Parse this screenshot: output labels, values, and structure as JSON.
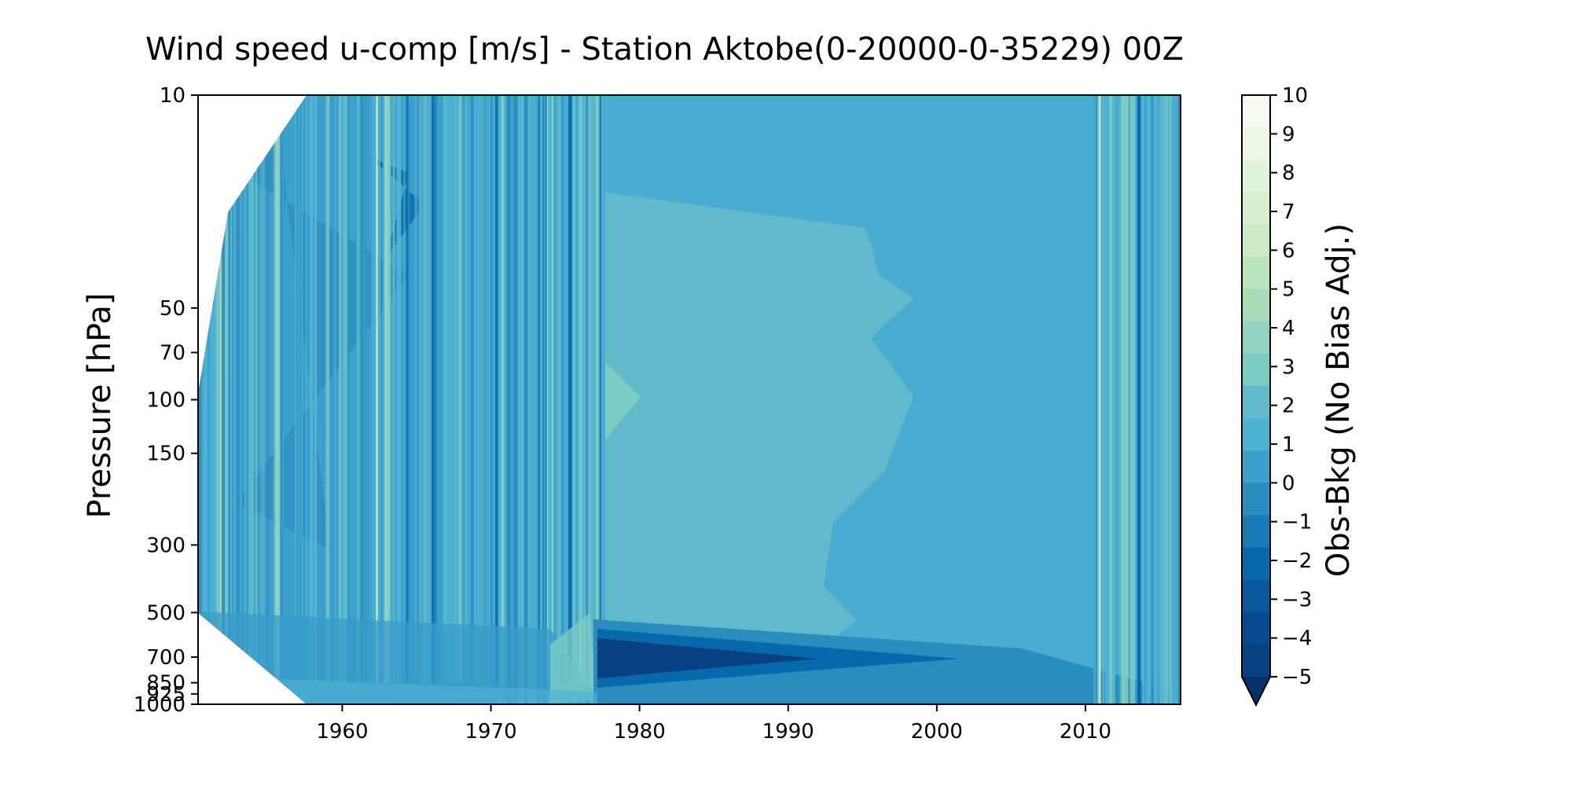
{
  "chart_data": {
    "type": "heatmap",
    "title": "Wind speed u-comp [m/s] - Station Aktobe(0-20000-0-35229) 00Z",
    "ylabel": "Pressure [hPa]",
    "xlabel": "",
    "x_ticks": [
      1960,
      1970,
      1980,
      1990,
      2000,
      2010
    ],
    "xlim": [
      1950.3,
      2016.4
    ],
    "y_ticks": [
      10,
      50,
      70,
      100,
      150,
      300,
      500,
      700,
      850,
      925,
      1000
    ],
    "y_ticklabels": [
      "10",
      "50",
      "70",
      "100",
      "150",
      "300",
      "500",
      "700",
      "850",
      "925",
      "1000"
    ],
    "ylim": [
      1000,
      10
    ],
    "colorbar": {
      "label": "Obs-Bkg (No Bias Adj.)",
      "ticks": [
        10,
        9,
        8,
        7,
        6,
        5,
        4,
        3,
        2,
        1,
        0,
        -1,
        -2,
        -3,
        -4,
        -5
      ],
      "tick_labels": [
        "10",
        "9",
        "8",
        "7",
        "6",
        "5",
        "4",
        "3",
        "2",
        "1",
        "0",
        "−1",
        "−2",
        "−3",
        "−4",
        "−5"
      ],
      "range": [
        -5,
        10
      ],
      "extend": "min",
      "colormap": "GnBu_r",
      "colors": [
        "#084081",
        "#0868ac",
        "#2b8cbe",
        "#4eb3d3",
        "#7bccc4",
        "#a8ddb5",
        "#ccebc5",
        "#e0f3db",
        "#f7fcf0"
      ]
    },
    "dominant_value": 0.5,
    "regions": [
      {
        "x": [
          1950.3,
          1977.5
        ],
        "p": [
          10,
          1000
        ],
        "value": -0.5,
        "pattern": "highly variable vertical streaks (-3 to 5)"
      },
      {
        "x": [
          1977.5,
          2010.5
        ],
        "p": [
          150,
          850
        ],
        "value": 1.5
      },
      {
        "x": [
          1977.5,
          2008.5
        ],
        "p": [
          880,
          960
        ],
        "value": -4.5
      },
      {
        "x": [
          2010.5,
          2016.4
        ],
        "p": [
          10,
          1000
        ],
        "value": 0.5,
        "pattern": "vertical streaks"
      }
    ]
  }
}
